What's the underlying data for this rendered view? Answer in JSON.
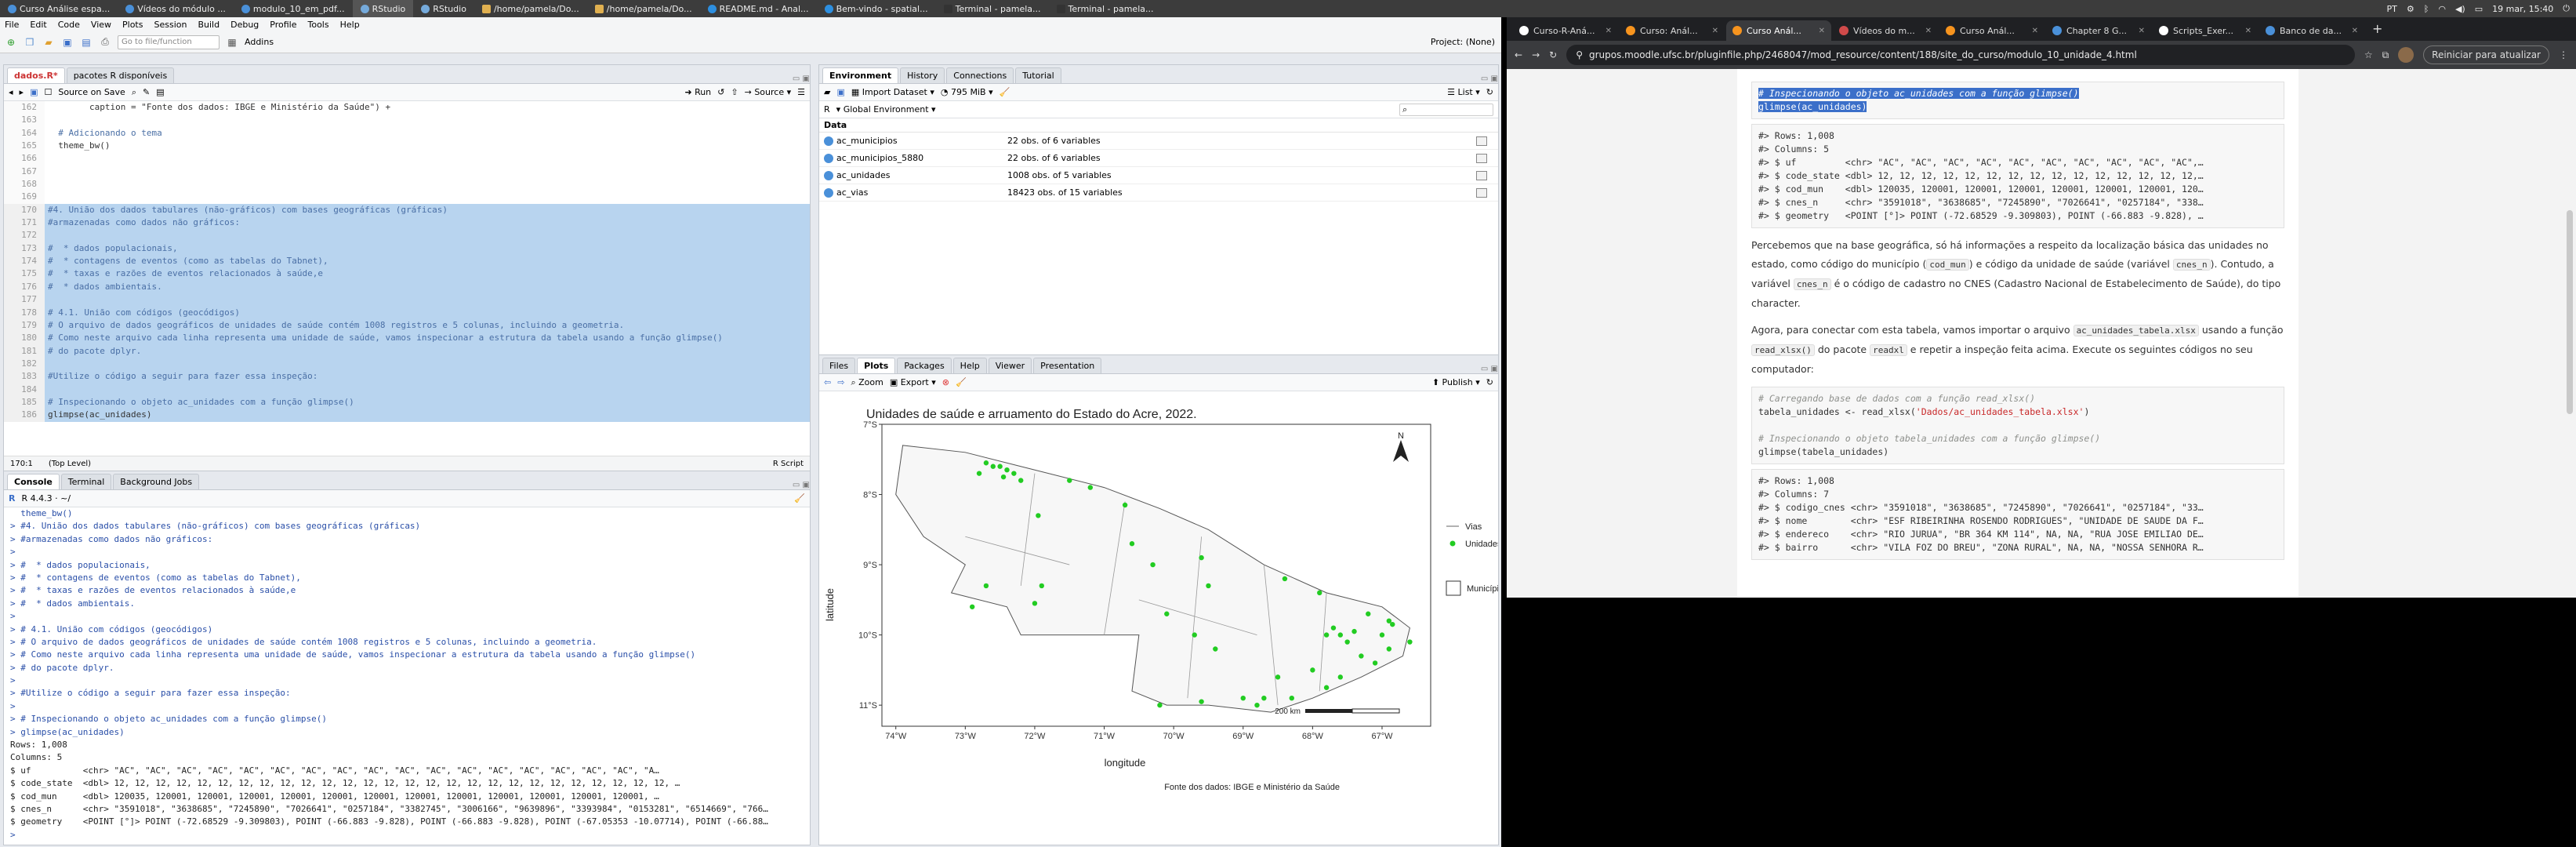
{
  "system_bar": {
    "apps": [
      {
        "label": "Curso Análise espa..."
      },
      {
        "label": "Vídeos do módulo ..."
      },
      {
        "label": "modulo_10_em_pdf..."
      },
      {
        "label": "RStudio"
      },
      {
        "label": "RStudio"
      },
      {
        "label": "/home/pamela/Do..."
      },
      {
        "label": "/home/pamela/Do..."
      },
      {
        "label": "README.md - Anal..."
      },
      {
        "label": "Bem-vindo - spatial..."
      },
      {
        "label": "Terminal - pamela..."
      },
      {
        "label": "Terminal - pamela..."
      }
    ],
    "keyboard": "PT",
    "datetime": "19 mar, 15:40"
  },
  "rstudio": {
    "menu": [
      "File",
      "Edit",
      "Code",
      "View",
      "Plots",
      "Session",
      "Build",
      "Debug",
      "Profile",
      "Tools",
      "Help"
    ],
    "goto_placeholder": "Go to file/function",
    "addins_label": "Addins",
    "project_label": "Project: (None)",
    "source": {
      "tabs": [
        "dados.R*",
        "pacotes R disponíveis"
      ],
      "source_on_save": "Source on Save",
      "run_label": "Run",
      "source_label": "Source",
      "lines": [
        {
          "n": "162",
          "t": "        caption = \"Fonte dos dados: IBGE e Ministério da Saúde\") +",
          "sel": false
        },
        {
          "n": "163",
          "t": "",
          "sel": false
        },
        {
          "n": "164",
          "t": "  # Adicionando o tema",
          "sel": false
        },
        {
          "n": "165",
          "t": "  theme_bw()",
          "sel": false
        },
        {
          "n": "166",
          "t": "",
          "sel": false
        },
        {
          "n": "167",
          "t": "",
          "sel": false
        },
        {
          "n": "168",
          "t": "",
          "sel": false
        },
        {
          "n": "169",
          "t": "",
          "sel": false
        },
        {
          "n": "170",
          "t": "#4. União dos dados tabulares (não-gráficos) com bases geográficas (gráficas)",
          "sel": true
        },
        {
          "n": "171",
          "t": "#armazenadas como dados não gráficos:",
          "sel": true
        },
        {
          "n": "172",
          "t": "",
          "sel": true
        },
        {
          "n": "173",
          "t": "#  * dados populacionais,",
          "sel": true
        },
        {
          "n": "174",
          "t": "#  * contagens de eventos (como as tabelas do Tabnet),",
          "sel": true
        },
        {
          "n": "175",
          "t": "#  * taxas e razões de eventos relacionados à saúde,e",
          "sel": true
        },
        {
          "n": "176",
          "t": "#  * dados ambientais.",
          "sel": true
        },
        {
          "n": "177",
          "t": "",
          "sel": true
        },
        {
          "n": "178",
          "t": "# 4.1. União com códigos (geocódigos)",
          "sel": true
        },
        {
          "n": "179",
          "t": "# O arquivo de dados geográficos de unidades de saúde contém 1008 registros e 5 colunas, incluindo a geometria.",
          "sel": true
        },
        {
          "n": "180",
          "t": "# Como neste arquivo cada linha representa uma unidade de saúde, vamos inspecionar a estrutura da tabela usando a função glimpse()",
          "sel": true
        },
        {
          "n": "181",
          "t": "# do pacote dplyr.",
          "sel": true
        },
        {
          "n": "182",
          "t": "",
          "sel": true
        },
        {
          "n": "183",
          "t": "#Utilize o código a seguir para fazer essa inspeção:",
          "sel": true
        },
        {
          "n": "184",
          "t": "",
          "sel": true
        },
        {
          "n": "185",
          "t": "# Inspecionando o objeto ac_unidades com a função glimpse()",
          "sel": true
        },
        {
          "n": "186",
          "t": "glimpse(ac_unidades)",
          "sel": true
        }
      ],
      "status_pos": "170:1",
      "status_scope": "(Top Level)",
      "status_lang": "R Script"
    },
    "console": {
      "tabs": [
        "Console",
        "Terminal",
        "Background Jobs"
      ],
      "version": "R 4.4.3 · ~/",
      "lines": [
        {
          "t": "  theme_bw()",
          "k": "p"
        },
        {
          "t": "> #4. União dos dados tabulares (não-gráficos) com bases geográficas (gráficas)",
          "k": "p"
        },
        {
          "t": "> #armazenadas como dados não gráficos:",
          "k": "p"
        },
        {
          "t": ">",
          "k": "p"
        },
        {
          "t": "> #  * dados populacionais,",
          "k": "p"
        },
        {
          "t": "> #  * contagens de eventos (como as tabelas do Tabnet),",
          "k": "p"
        },
        {
          "t": "> #  * taxas e razões de eventos relacionados à saúde,e",
          "k": "p"
        },
        {
          "t": "> #  * dados ambientais.",
          "k": "p"
        },
        {
          "t": ">",
          "k": "p"
        },
        {
          "t": "> # 4.1. União com códigos (geocódigos)",
          "k": "p"
        },
        {
          "t": "> # O arquivo de dados geográficos de unidades de saúde contém 1008 registros e 5 colunas, incluindo a geometria.",
          "k": "p"
        },
        {
          "t": "> # Como neste arquivo cada linha representa uma unidade de saúde, vamos inspecionar a estrutura da tabela usando a função glimpse()",
          "k": "p"
        },
        {
          "t": "> # do pacote dplyr.",
          "k": "p"
        },
        {
          "t": ">",
          "k": "p"
        },
        {
          "t": "> #Utilize o código a seguir para fazer essa inspeção:",
          "k": "p"
        },
        {
          "t": ">",
          "k": "p"
        },
        {
          "t": "> # Inspecionando o objeto ac_unidades com a função glimpse()",
          "k": "p"
        },
        {
          "t": "> glimpse(ac_unidades)",
          "k": "p"
        },
        {
          "t": "Rows: 1,008",
          "k": "o"
        },
        {
          "t": "Columns: 5",
          "k": "o"
        },
        {
          "t": "$ uf          <chr> \"AC\", \"AC\", \"AC\", \"AC\", \"AC\", \"AC\", \"AC\", \"AC\", \"AC\", \"AC\", \"AC\", \"AC\", \"AC\", \"AC\", \"AC\", \"AC\", \"AC\", \"A…",
          "k": "o"
        },
        {
          "t": "$ code_state  <dbl> 12, 12, 12, 12, 12, 12, 12, 12, 12, 12, 12, 12, 12, 12, 12, 12, 12, 12, 12, 12, 12, 12, 12, 12, 12, 12, 12, …",
          "k": "o"
        },
        {
          "t": "$ cod_mun     <dbl> 120035, 120001, 120001, 120001, 120001, 120001, 120001, 120001, 120001, 120001, 120001, 120001, 120001, …",
          "k": "o"
        },
        {
          "t": "$ cnes_n      <chr> \"3591018\", \"3638685\", \"7245890\", \"7026641\", \"0257184\", \"3382745\", \"3006166\", \"9639896\", \"3393984\", \"0153281\", \"6514669\", \"766…",
          "k": "o"
        },
        {
          "t": "$ geometry    <POINT [°]> POINT (-72.68529 -9.309803), POINT (-66.883 -9.828), POINT (-66.883 -9.828), POINT (-67.05353 -10.07714), POINT (-66.88…",
          "k": "o"
        },
        {
          "t": ">",
          "k": "p"
        }
      ]
    },
    "environment": {
      "tabs": [
        "Environment",
        "History",
        "Connections",
        "Tutorial"
      ],
      "import_label": "Import Dataset",
      "memory": "795 MiB",
      "list_label": "List",
      "lang": "R",
      "scope": "Global Environment",
      "section": "Data",
      "rows": [
        {
          "name": "ac_municipios",
          "desc": "22 obs. of 6 variables"
        },
        {
          "name": "ac_municipios_5880",
          "desc": "22 obs. of 6 variables"
        },
        {
          "name": "ac_unidades",
          "desc": "1008 obs. of 5 variables"
        },
        {
          "name": "ac_vias",
          "desc": "18423 obs. of 15 variables"
        }
      ]
    },
    "plots": {
      "tabs": [
        "Files",
        "Plots",
        "Packages",
        "Help",
        "Viewer",
        "Presentation"
      ],
      "zoom_label": "Zoom",
      "export_label": "Export",
      "publish_label": "Publish"
    }
  },
  "chart_data": {
    "type": "scatter",
    "title": "Unidades de saúde e arruamento do Estado do Acre, 2022.",
    "xlabel": "longitude",
    "ylabel": "latitude",
    "x_ticks": [
      "74°W",
      "73°W",
      "72°W",
      "71°W",
      "70°W",
      "69°W",
      "68°W",
      "67°W"
    ],
    "y_ticks": [
      "7°S",
      "8°S",
      "9°S",
      "10°S",
      "11°S"
    ],
    "xlim": [
      -74.2,
      -66.3
    ],
    "ylim": [
      -11.3,
      -7.0
    ],
    "legend": [
      {
        "label": "Vias",
        "kind": "line",
        "color": "#999999"
      },
      {
        "label": "Unidades de saúde",
        "kind": "point",
        "color": "#22cc22"
      },
      {
        "label": "Municípios",
        "kind": "box"
      }
    ],
    "caption": "Fonte dos dados: IBGE e Ministério da Saúde",
    "scalebar": "200 km",
    "north": "N",
    "points": [
      [
        -72.6,
        -7.6
      ],
      [
        -72.5,
        -7.6
      ],
      [
        -72.4,
        -7.65
      ],
      [
        -72.3,
        -7.7
      ],
      [
        -72.7,
        -7.55
      ],
      [
        -72.45,
        -7.75
      ],
      [
        -72.2,
        -7.8
      ],
      [
        -72.8,
        -7.7
      ],
      [
        -71.5,
        -7.8
      ],
      [
        -71.2,
        -7.9
      ],
      [
        -70.7,
        -8.15
      ],
      [
        -72.7,
        -9.3
      ],
      [
        -72.9,
        -9.6
      ],
      [
        -71.9,
        -9.3
      ],
      [
        -72.0,
        -9.55
      ],
      [
        -71.95,
        -8.3
      ],
      [
        -70.6,
        -8.7
      ],
      [
        -70.3,
        -9.0
      ],
      [
        -69.6,
        -8.9
      ],
      [
        -69.5,
        -9.3
      ],
      [
        -70.1,
        -9.7
      ],
      [
        -69.7,
        -10.0
      ],
      [
        -69.4,
        -10.2
      ],
      [
        -68.5,
        -10.6
      ],
      [
        -68.7,
        -10.9
      ],
      [
        -68.8,
        -11.0
      ],
      [
        -69.6,
        -10.95
      ],
      [
        -70.2,
        -11.0
      ],
      [
        -67.8,
        -10.0
      ],
      [
        -67.7,
        -9.9
      ],
      [
        -67.6,
        -10.0
      ],
      [
        -67.5,
        -10.1
      ],
      [
        -67.4,
        -9.95
      ],
      [
        -67.0,
        -10.0
      ],
      [
        -67.2,
        -9.7
      ],
      [
        -66.9,
        -9.8
      ],
      [
        -66.85,
        -9.85
      ],
      [
        -67.9,
        -9.4
      ],
      [
        -68.4,
        -9.2
      ],
      [
        -67.3,
        -10.3
      ],
      [
        -68.0,
        -10.5
      ],
      [
        -67.8,
        -10.75
      ],
      [
        -68.3,
        -10.9
      ],
      [
        -69.0,
        -10.9
      ],
      [
        -66.6,
        -10.1
      ],
      [
        -66.9,
        -10.2
      ],
      [
        -67.1,
        -10.4
      ],
      [
        -67.6,
        -10.6
      ]
    ]
  },
  "chrome": {
    "tabs": [
      {
        "label": "Curso-R-Aná...",
        "color": "#ffffff",
        "active": false
      },
      {
        "label": "Curso: Anál...",
        "color": "#f7941e",
        "active": false
      },
      {
        "label": "Curso Anál...",
        "color": "#f7941e",
        "active": true
      },
      {
        "label": "Vídeos do m...",
        "color": "#d04a4a",
        "active": false
      },
      {
        "label": "Curso Anál...",
        "color": "#f7941e",
        "active": false
      },
      {
        "label": "Chapter 8 G...",
        "color": "#4a90d9",
        "active": false
      },
      {
        "label": "Scripts_Exer...",
        "color": "#ffffff",
        "active": false
      },
      {
        "label": "Banco de da...",
        "color": "#4a90d9",
        "active": false
      }
    ],
    "url": "grupos.moodle.ufsc.br/pluginfile.php/2468047/mod_resource/content/188/site_do_curso/modulo_10_unidade_4.html",
    "update_label": "Reiniciar para atualizar",
    "page": {
      "selected_code": [
        "# Inspecionando o objeto ac_unidades com a função glimpse()",
        "glimpse(ac_unidades)"
      ],
      "output1": [
        "#> Rows: 1,008",
        "#> Columns: 5",
        "#> $ uf         <chr> \"AC\", \"AC\", \"AC\", \"AC\", \"AC\", \"AC\", \"AC\", \"AC\", \"AC\", \"AC\",…",
        "#> $ code_state <dbl> 12, 12, 12, 12, 12, 12, 12, 12, 12, 12, 12, 12, 12, 12, 12,…",
        "#> $ cod_mun    <dbl> 120035, 120001, 120001, 120001, 120001, 120001, 120001, 120…",
        "#> $ cnes_n     <chr> \"3591018\", \"3638685\", \"7245890\", \"7026641\", \"0257184\", \"338…",
        "#> $ geometry   <POINT [°]> POINT (-72.68529 -9.309803), POINT (-66.883 -9.828), …"
      ],
      "para1_a": "Percebemos que na base geográfica, só há informações a respeito da localização básica das unidades no estado, como código do município (",
      "para1_code1": "cod_mun",
      "para1_b": ") e código da unidade de saúde (variável ",
      "para1_code2": "cnes_n",
      "para1_c": "). Contudo, a variável ",
      "para1_code3": "cnes_n",
      "para1_d": " é o código de cadastro no CNES (Cadastro Nacional de Estabelecimento de Saúde), do tipo character.",
      "para2_a": "Agora, para conectar com esta tabela, vamos importar o arquivo ",
      "para2_code1": "ac_unidades_tabela.xlsx",
      "para2_b": " usando a função ",
      "para2_code2": "read_xlsx()",
      "para2_c": " do pacote ",
      "para2_code3": "readxl",
      "para2_d": " e repetir a inspeção feita acima. Execute os seguintes códigos no seu computador:",
      "code2": {
        "c1": "# Carregando base de dados com a função read_xlsx()",
        "l2a": "tabela_unidades <- read_xlsx(",
        "l2s": "'Dados/ac_unidades_tabela.xlsx'",
        "l2b": ")",
        "c3": "# Inspecionando o objeto tabela_unidades com a função glimpse()",
        "l4": "glimpse(tabela_unidades)"
      },
      "output2": [
        "#> Rows: 1,008",
        "#> Columns: 7",
        "#> $ codigo_cnes <chr> \"3591018\", \"3638685\", \"7245890\", \"7026641\", \"0257184\", \"33…",
        "#> $ nome        <chr> \"ESF RIBEIRINHA ROSENDO RODRIGUES\", \"UNIDADE DE SAUDE DA F…",
        "#> $ endereco    <chr> \"RIO JURUA\", \"BR 364 KM 114\", NA, NA, \"RUA JOSE EMILIAO DE…",
        "#> $ bairro      <chr> \"VILA FOZ DO BREU\", \"ZONA RURAL\", NA, NA, \"NOSSA SENHORA R…"
      ]
    }
  }
}
